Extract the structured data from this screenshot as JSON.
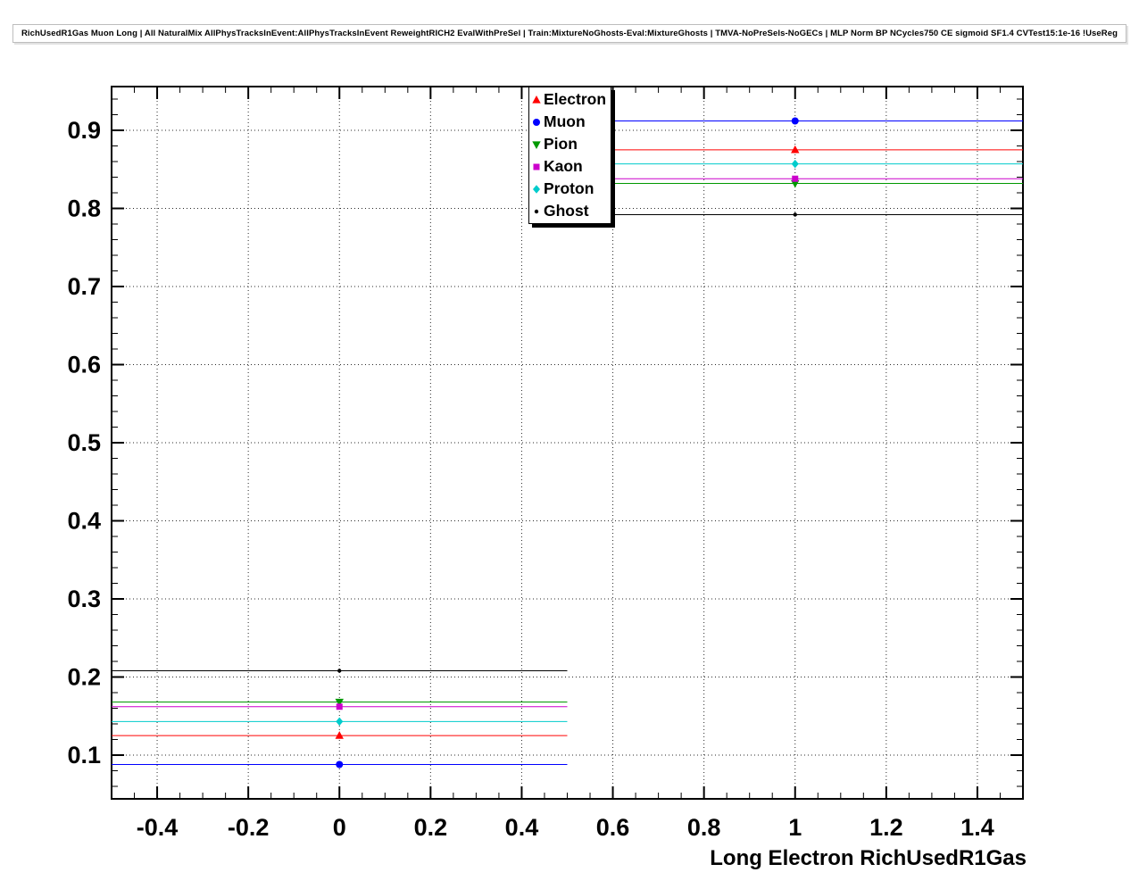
{
  "header": {
    "title": "RichUsedR1Gas Muon Long | All NaturalMix AllPhysTracksInEvent:AllPhysTracksInEvent ReweightRICH2 EvalWithPreSel | Train:MixtureNoGhosts-Eval:MixtureGhosts | TMVA-NoPreSels-NoGECs | MLP Norm BP NCycles750 CE sigmoid SF1.4 CVTest15:1e-16 !UseReg"
  },
  "chart_data": {
    "type": "line",
    "title": "RichUsedR1Gas Muon Long",
    "xlabel": "Long Electron RichUsedR1Gas",
    "ylabel": "",
    "xlim": [
      -0.5,
      1.5
    ],
    "ylim": [
      0.044,
      0.956
    ],
    "grid": true,
    "legend_position": "top-center",
    "xticks": [
      -0.4,
      -0.2,
      0,
      0.2,
      0.4,
      0.6,
      0.8,
      1,
      1.2,
      1.4
    ],
    "xtick_labels": [
      "-0.4",
      "-0.2",
      "0",
      "0.2",
      "0.4",
      "0.6",
      "0.8",
      "1",
      "1.2",
      "1.4"
    ],
    "yticks": [
      0.1,
      0.2,
      0.3,
      0.4,
      0.5,
      0.6,
      0.7,
      0.8,
      0.9
    ],
    "ytick_labels": [
      "0.1",
      "0.2",
      "0.3",
      "0.4",
      "0.5",
      "0.6",
      "0.7",
      "0.8",
      "0.9"
    ],
    "x": [
      0,
      1
    ],
    "bin_half_width": 0.5,
    "series": [
      {
        "name": "Electron",
        "marker": "triangle-up",
        "color": "#ff0000",
        "values": [
          0.125,
          0.875
        ]
      },
      {
        "name": "Muon",
        "marker": "circle",
        "color": "#0000ff",
        "values": [
          0.088,
          0.912
        ]
      },
      {
        "name": "Pion",
        "marker": "triangle-down",
        "color": "#009900",
        "values": [
          0.168,
          0.832
        ]
      },
      {
        "name": "Kaon",
        "marker": "square",
        "color": "#cc00cc",
        "values": [
          0.162,
          0.838
        ]
      },
      {
        "name": "Proton",
        "marker": "diamond",
        "color": "#00cccc",
        "values": [
          0.143,
          0.857
        ]
      },
      {
        "name": "Ghost",
        "marker": "dot",
        "color": "#000000",
        "values": [
          0.208,
          0.792
        ]
      }
    ]
  }
}
